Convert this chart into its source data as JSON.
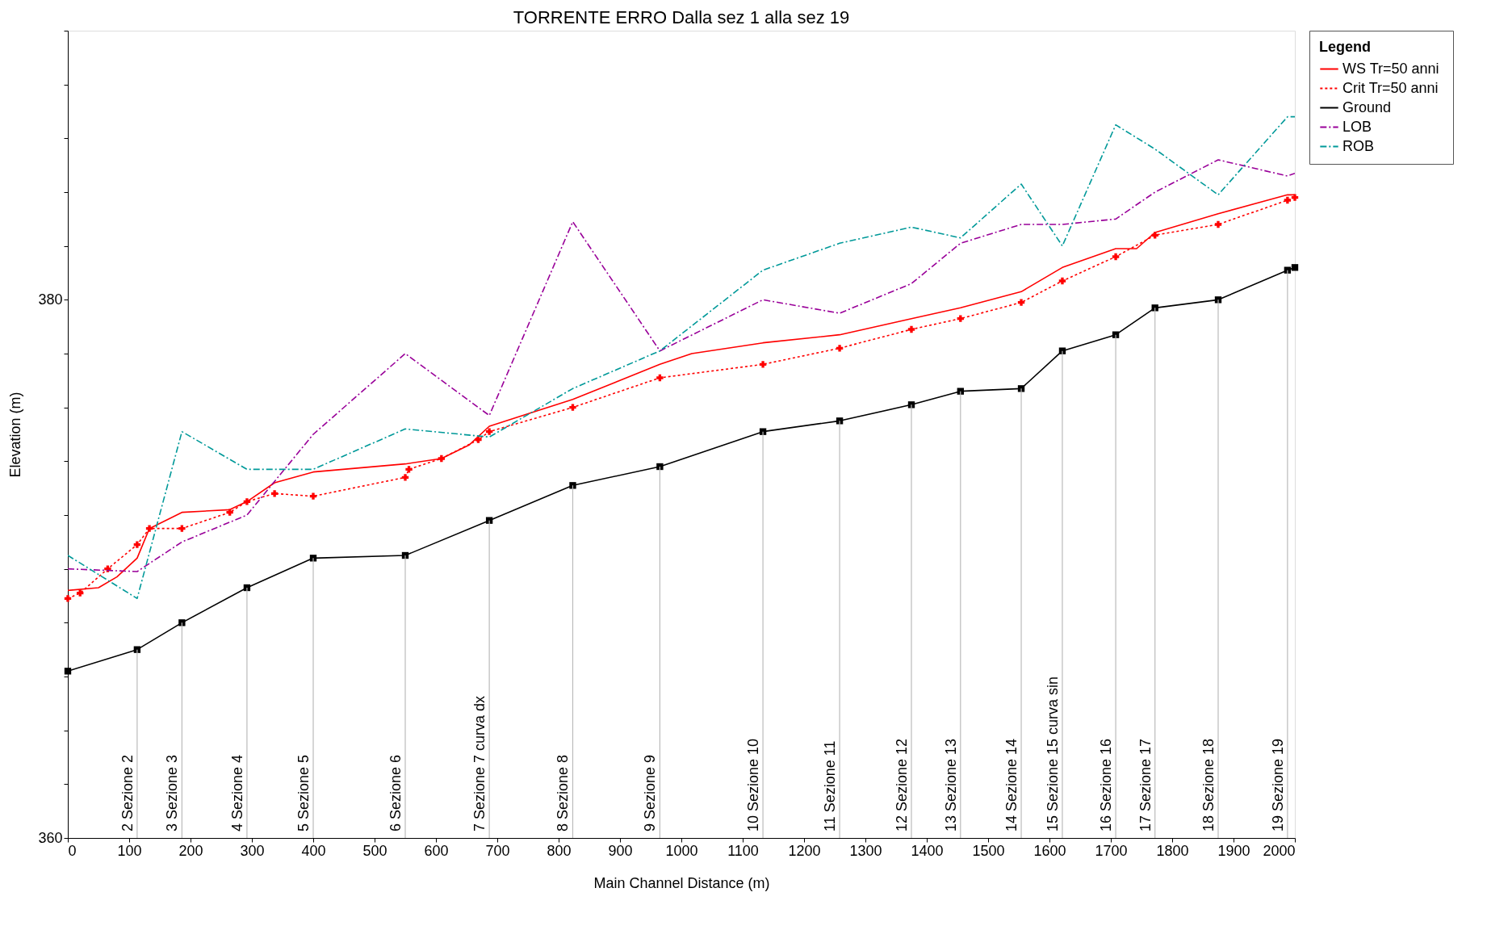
{
  "chart_data": {
    "type": "line",
    "title": "TORRENTE ERRO Dalla sez 1 alla sez 19",
    "xlabel": "Main Channel Distance (m)",
    "ylabel": "Elevation (m)",
    "legend_title": "Legend",
    "legend": "top right",
    "grid": false,
    "xlim": [
      0,
      2000
    ],
    "xticks": [
      0,
      100,
      200,
      300,
      400,
      500,
      600,
      700,
      800,
      900,
      1000,
      1100,
      1200,
      1300,
      1400,
      1500,
      1600,
      1700,
      1800,
      1900,
      2000
    ],
    "ylim": [
      360,
      390
    ],
    "yticks": [
      360,
      {
        "value": 362,
        "label": null
      },
      {
        "value": 364,
        "label": null
      },
      {
        "value": 366,
        "label": null
      },
      {
        "value": 368,
        "label": null
      },
      {
        "value": 370,
        "label": null
      },
      {
        "value": 372,
        "label": null
      },
      {
        "value": 374,
        "label": null
      },
      {
        "value": 376,
        "label": null
      },
      {
        "value": 378,
        "label": null
      },
      380,
      {
        "value": 382,
        "label": null
      },
      {
        "value": 384,
        "label": null
      },
      {
        "value": 386,
        "label": null
      },
      {
        "value": 388,
        "label": null
      },
      {
        "value": 390,
        "label": null
      }
    ],
    "series": [
      {
        "name": "WS  Tr=50 anni",
        "color": "#ff0000",
        "marker": "none",
        "line_style": "solid",
        "x": [
          0,
          50,
          80,
          113,
          133,
          186,
          264,
          292,
          337,
          400,
          550,
          609,
          654,
          687,
          823,
          965,
          1017,
          1133,
          1258,
          1375,
          1455,
          1554,
          1621,
          1708,
          1742,
          1772,
          1875,
          1988,
          2000
        ],
        "values": [
          369.2,
          369.3,
          369.7,
          370.4,
          371.5,
          372.1,
          372.2,
          372.5,
          373.2,
          373.6,
          373.9,
          374.1,
          374.6,
          375.3,
          376.3,
          377.6,
          378.0,
          378.4,
          378.7,
          379.3,
          379.7,
          380.3,
          381.2,
          381.9,
          381.9,
          382.5,
          383.2,
          383.9,
          383.9
        ]
      },
      {
        "name": "Crit  Tr=50 anni",
        "color": "#ff0000",
        "marker": "cross",
        "line_style": "dotted",
        "x": [
          0,
          20,
          65,
          113,
          133,
          186,
          264,
          292,
          337,
          400,
          550,
          556,
          609,
          669,
          687,
          823,
          965,
          1133,
          1258,
          1375,
          1455,
          1554,
          1621,
          1708,
          1772,
          1875,
          1988,
          2000
        ],
        "values": [
          368.9,
          369.1,
          370.0,
          370.9,
          371.5,
          371.5,
          372.1,
          372.5,
          372.8,
          372.7,
          373.4,
          373.7,
          374.1,
          374.8,
          375.1,
          376.0,
          377.1,
          377.6,
          378.2,
          378.9,
          379.3,
          379.9,
          380.7,
          381.6,
          382.4,
          382.8,
          383.7,
          383.8
        ]
      },
      {
        "name": "Ground",
        "color": "#000000",
        "marker": "square",
        "line_style": "solid",
        "x": [
          0,
          113,
          186,
          292,
          400,
          550,
          687,
          823,
          965,
          1133,
          1258,
          1375,
          1455,
          1554,
          1621,
          1708,
          1772,
          1875,
          1988,
          2000
        ],
        "values": [
          366.2,
          367.0,
          368.0,
          369.3,
          370.4,
          370.5,
          371.8,
          373.1,
          373.8,
          375.1,
          375.5,
          376.1,
          376.6,
          376.7,
          378.1,
          378.7,
          379.7,
          380.0,
          381.1,
          381.2
        ]
      },
      {
        "name": "LOB",
        "color": "#990099",
        "marker": "none",
        "line_style": "dashed",
        "x": [
          0,
          113,
          186,
          292,
          400,
          550,
          687,
          823,
          965,
          1133,
          1258,
          1375,
          1455,
          1554,
          1621,
          1708,
          1772,
          1875,
          1988,
          2000
        ],
        "values": [
          370.0,
          369.9,
          371.0,
          372.0,
          375.0,
          378.0,
          375.7,
          382.9,
          378.1,
          380.0,
          379.5,
          380.6,
          382.1,
          382.8,
          382.8,
          383.0,
          384.0,
          385.2,
          384.6,
          384.7
        ]
      },
      {
        "name": "ROB",
        "color": "#009999",
        "marker": "none",
        "line_style": "dashed",
        "x": [
          0,
          113,
          186,
          292,
          400,
          550,
          687,
          823,
          965,
          1133,
          1258,
          1375,
          1455,
          1554,
          1621,
          1708,
          1772,
          1875,
          1988,
          2000
        ],
        "values": [
          370.5,
          368.9,
          375.1,
          373.7,
          373.7,
          375.2,
          374.9,
          376.7,
          378.1,
          381.1,
          382.1,
          382.7,
          382.3,
          384.3,
          382.0,
          386.5,
          385.6,
          383.9,
          386.8,
          386.8
        ]
      }
    ],
    "annotations": [
      {
        "text": "2 Sezione 2",
        "x": 113,
        "y": 367.0
      },
      {
        "text": "3 Sezione 3",
        "x": 186,
        "y": 368.0
      },
      {
        "text": "4 Sezione 4",
        "x": 292,
        "y": 369.3
      },
      {
        "text": "5 Sezione 5",
        "x": 400,
        "y": 370.4
      },
      {
        "text": "6 Sezione 6",
        "x": 550,
        "y": 370.5
      },
      {
        "text": "7 Sezione 7 curva dx",
        "x": 687,
        "y": 371.8
      },
      {
        "text": "8 Sezione 8",
        "x": 823,
        "y": 373.1
      },
      {
        "text": "9 Sezione 9",
        "x": 965,
        "y": 373.8
      },
      {
        "text": "10 Sezione 10",
        "x": 1133,
        "y": 375.1
      },
      {
        "text": "11 Sezione 11",
        "x": 1258,
        "y": 375.5
      },
      {
        "text": "12 Sezione 12",
        "x": 1375,
        "y": 376.1
      },
      {
        "text": "13 Sezione 13",
        "x": 1455,
        "y": 376.6
      },
      {
        "text": "14 Sezione 14",
        "x": 1554,
        "y": 376.7
      },
      {
        "text": "15 Sezione 15 curva sin",
        "x": 1621,
        "y": 378.1
      },
      {
        "text": "16 Sezione 16",
        "x": 1708,
        "y": 378.7
      },
      {
        "text": "17 Sezione 17",
        "x": 1772,
        "y": 379.7
      },
      {
        "text": "18 Sezione 18",
        "x": 1875,
        "y": 380.0
      },
      {
        "text": "19 Sezione 19",
        "x": 1988,
        "y": 381.1
      }
    ]
  }
}
